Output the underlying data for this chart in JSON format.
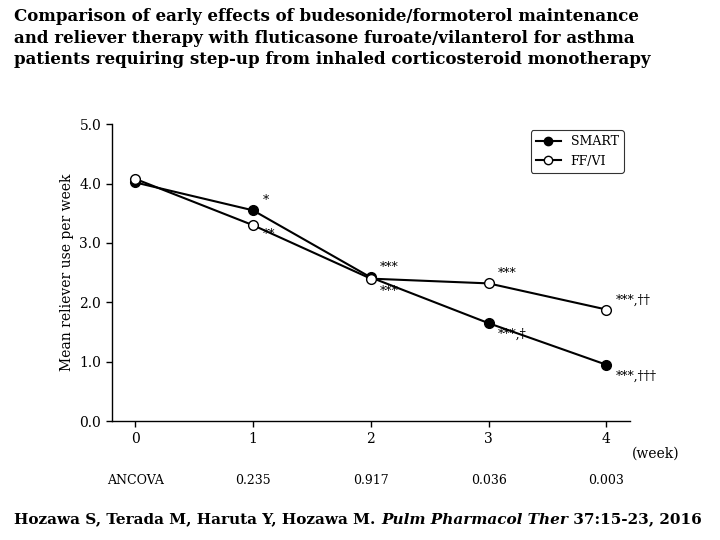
{
  "title_line1": "Comparison of early effects of budesonide/formoterol maintenance",
  "title_line2": "and reliever therapy with fluticasone furoate/vilanterol for asthma",
  "title_line3": "patients requiring step-up from inhaled corticosteroid monotherapy",
  "x": [
    0,
    1,
    2,
    3,
    4
  ],
  "smart_y": [
    4.02,
    3.55,
    2.42,
    1.65,
    0.95
  ],
  "ffvi_y": [
    4.08,
    3.3,
    2.4,
    2.32,
    1.88
  ],
  "ylabel": "Mean reliever use per week",
  "ylim": [
    0.0,
    5.0
  ],
  "yticks": [
    0.0,
    1.0,
    2.0,
    3.0,
    4.0,
    5.0
  ],
  "xticks": [
    0,
    1,
    2,
    3,
    4
  ],
  "ancova_labels": [
    "ANCOVA",
    "0.235",
    "0.917",
    "0.036",
    "0.003"
  ],
  "legend_smart": "SMART",
  "legend_ffvi": "FF/VI",
  "background_color": "#ffffff",
  "citation_normal": "Hozawa S, Terada M, Haruta Y, Hozawa M. ",
  "citation_italic": "Pulm Pharmacol Ther",
  "citation_rest": " 37:15-23, 2016",
  "title_fontsize": 12,
  "axis_fontsize": 10,
  "annot_fontsize": 9,
  "citation_fontsize": 11
}
